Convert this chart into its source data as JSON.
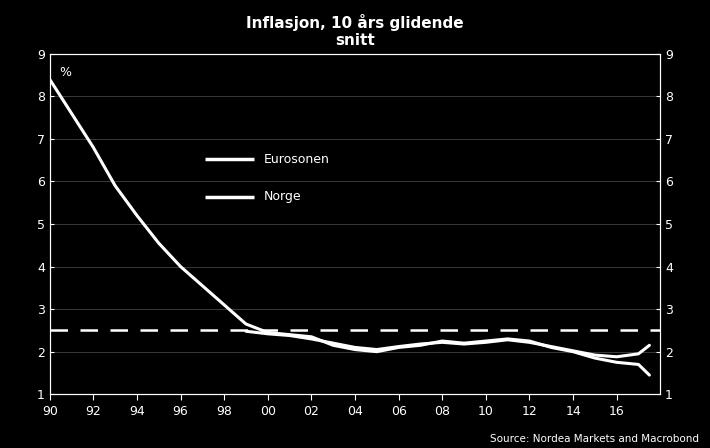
{
  "title": "Inflasjon, 10 års glidende\nsnitt",
  "ylabel_left": "%",
  "source": "Source: Nordea Markets and Macrobond",
  "background_color": "#000000",
  "text_color": "#ffffff",
  "line_color": "#ffffff",
  "dashed_line_y": 2.5,
  "ylim": [
    1,
    9
  ],
  "xlim": [
    1990,
    2018
  ],
  "yticks": [
    1,
    2,
    3,
    4,
    5,
    6,
    7,
    8,
    9
  ],
  "xtick_positions": [
    1990,
    1992,
    1994,
    1996,
    1998,
    2000,
    2002,
    2004,
    2006,
    2008,
    2010,
    2012,
    2014,
    2016
  ],
  "xtick_labels": [
    "90",
    "92",
    "94",
    "96",
    "98",
    "00",
    "02",
    "04",
    "06",
    "08",
    "10",
    "12",
    "14",
    "16"
  ],
  "legend_entries": [
    "Eurosonen",
    "Norge"
  ],
  "norway_x": [
    1990,
    1991,
    1992,
    1993,
    1994,
    1995,
    1996,
    1997,
    1998,
    1999,
    2000,
    2001,
    2002,
    2003,
    2004,
    2005,
    2006,
    2007,
    2008,
    2009,
    2010,
    2011,
    2012,
    2013,
    2014,
    2015,
    2016,
    2017,
    2017.5
  ],
  "norway_y": [
    8.4,
    7.6,
    6.8,
    5.9,
    5.2,
    4.55,
    4.0,
    3.55,
    3.1,
    2.65,
    2.45,
    2.4,
    2.35,
    2.15,
    2.05,
    2.0,
    2.1,
    2.15,
    2.25,
    2.2,
    2.25,
    2.3,
    2.25,
    2.1,
    2.0,
    1.85,
    1.75,
    1.7,
    1.45
  ],
  "euro_x": [
    1999,
    2000,
    2001,
    2002,
    2003,
    2004,
    2005,
    2006,
    2007,
    2008,
    2009,
    2010,
    2011,
    2012,
    2013,
    2014,
    2015,
    2016,
    2017,
    2017.5
  ],
  "euro_y": [
    2.48,
    2.42,
    2.38,
    2.3,
    2.2,
    2.1,
    2.05,
    2.12,
    2.18,
    2.22,
    2.18,
    2.22,
    2.28,
    2.22,
    2.12,
    2.02,
    1.92,
    1.88,
    1.95,
    2.15
  ],
  "grid_color": "#444444",
  "title_fontsize": 11,
  "tick_fontsize": 9,
  "source_fontsize": 7.5
}
